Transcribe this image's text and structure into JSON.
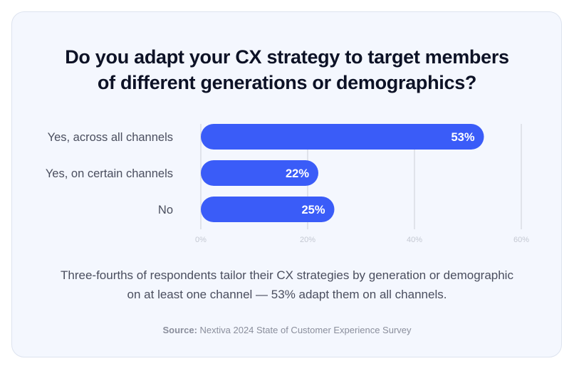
{
  "chart_data": {
    "type": "bar",
    "orientation": "horizontal",
    "title": "Do you adapt your CX strategy to target members of different generations or demographics?",
    "categories": [
      "Yes, across all channels",
      "Yes, on certain channels",
      "No"
    ],
    "values": [
      53,
      22,
      25
    ],
    "data_labels": [
      "53%",
      "22%",
      "25%"
    ],
    "xlim": [
      0,
      60
    ],
    "x_ticks": [
      0,
      20,
      40,
      60
    ],
    "x_tick_labels": [
      "0%",
      "20%",
      "40%",
      "60%"
    ],
    "grid": true,
    "bar_color": "#3a5cf8",
    "xlabel": "",
    "ylabel": ""
  },
  "caption": {
    "line1": "Three-fourths of respondents tailor their CX strategies by generation or demographic",
    "line2": "on at least one channel — 53% adapt them on all channels."
  },
  "source": {
    "label": "Source:",
    "text": " Nextiva 2024 State of Customer Experience Survey"
  }
}
